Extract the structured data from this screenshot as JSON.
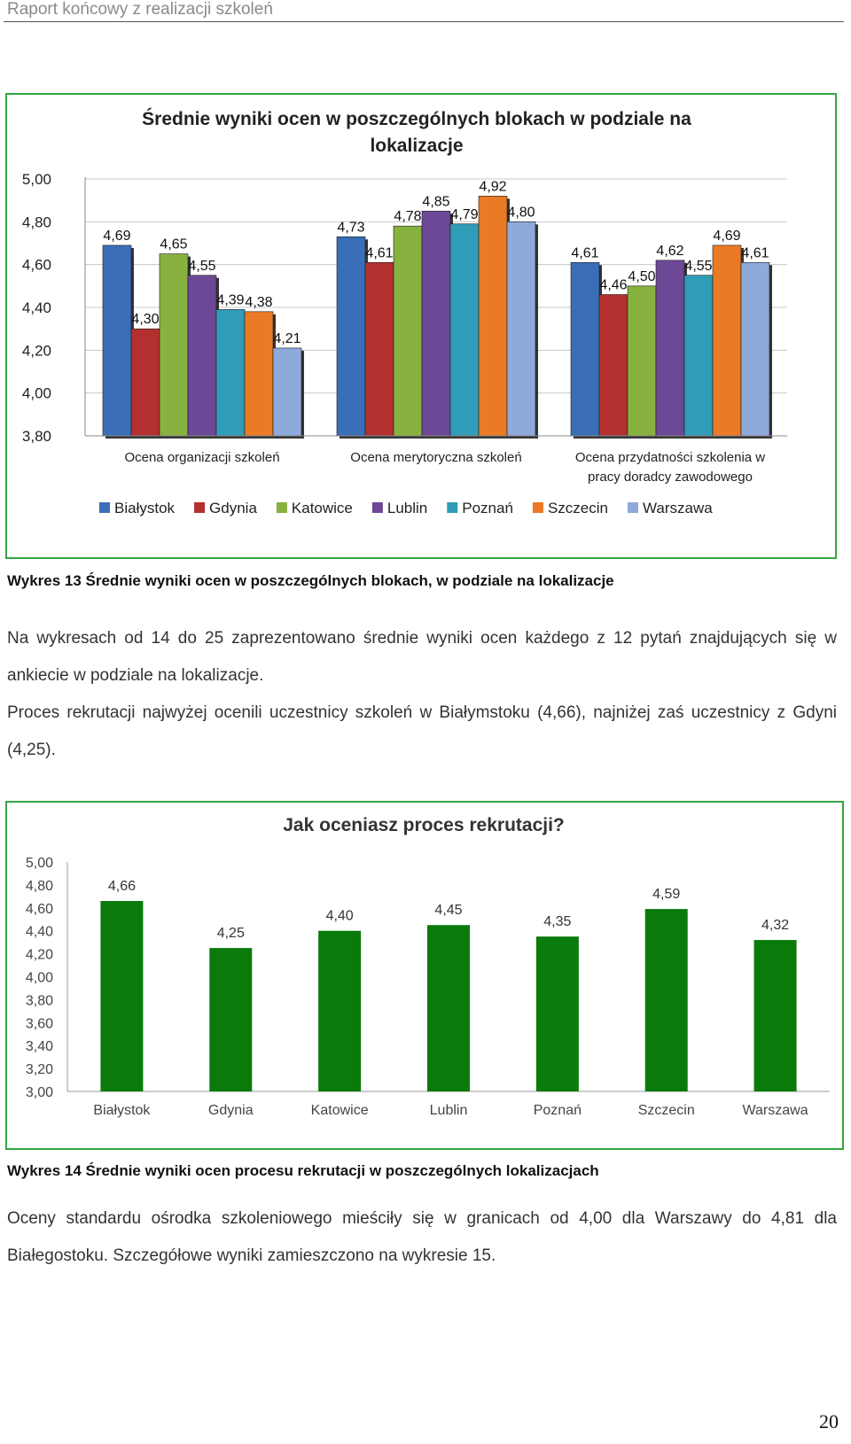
{
  "header": {
    "title": "Raport końcowy z realizacji szkoleń"
  },
  "chart1": {
    "chart_data": {
      "type": "bar",
      "title": "Średnie wyniki ocen w poszczególnych blokach w podziale na lokalizacje",
      "title_lines": [
        "Średnie wyniki ocen w poszczególnych blokach w podziale na",
        "lokalizacje"
      ],
      "categories": [
        "Ocena organizacji szkoleń",
        "Ocena merytoryczna szkoleń",
        "Ocena przydatności szkolenia w pracy doradcy zawodowego"
      ],
      "category_lines": [
        [
          "Ocena organizacji szkoleń"
        ],
        [
          "Ocena merytoryczna szkoleń"
        ],
        [
          "Ocena przydatności szkolenia w",
          "pracy doradcy zawodowego"
        ]
      ],
      "series": [
        {
          "name": "Białystok",
          "color": "#3a6fb7",
          "values": [
            4.69,
            4.73,
            4.61
          ]
        },
        {
          "name": "Gdynia",
          "color": "#b3302f",
          "values": [
            4.3,
            4.61,
            4.46
          ]
        },
        {
          "name": "Katowice",
          "color": "#88b140",
          "values": [
            4.65,
            4.78,
            4.5
          ]
        },
        {
          "name": "Lublin",
          "color": "#6c4896",
          "values": [
            4.55,
            4.85,
            4.62
          ]
        },
        {
          "name": "Poznań",
          "color": "#2f9db8",
          "values": [
            4.39,
            4.79,
            4.55
          ]
        },
        {
          "name": "Szczecin",
          "color": "#ea7a25",
          "values": [
            4.38,
            4.92,
            4.69
          ]
        },
        {
          "name": "Warszawa",
          "color": "#8eaadb",
          "values": [
            4.21,
            4.8,
            4.61
          ]
        }
      ],
      "ylim": [
        3.8,
        5.0
      ],
      "yticks": [
        "5,00",
        "4,80",
        "4,60",
        "4,40",
        "4,20",
        "4,00",
        "3,80"
      ],
      "grid": true,
      "legend_position": "bottom"
    }
  },
  "caption1": "Wykres 13 Średnie wyniki ocen w poszczególnych blokach, w podziale na lokalizacje",
  "paragraph1a": "Na wykresach od 14 do 25 zaprezentowano średnie wyniki ocen każdego z 12 pytań znajdujących się w ankiecie w podziale na lokalizacje.",
  "paragraph1b": "Proces rekrutacji najwyżej ocenili uczestnicy szkoleń w Białymstoku (4,66), najniżej zaś uczestnicy z Gdyni (4,25).",
  "chart2": {
    "chart_data": {
      "type": "bar",
      "title": "Jak oceniasz proces rekrutacji?",
      "categories": [
        "Białystok",
        "Gdynia",
        "Katowice",
        "Lublin",
        "Poznań",
        "Szczecin",
        "Warszawa"
      ],
      "values": [
        4.66,
        4.25,
        4.4,
        4.45,
        4.35,
        4.59,
        4.32
      ],
      "labels": [
        "4,66",
        "4,25",
        "4,40",
        "4,45",
        "4,35",
        "4,59",
        "4,32"
      ],
      "color": "#0a7a0a",
      "ylim": [
        3.0,
        5.0
      ],
      "yticks": [
        "5,00",
        "4,80",
        "4,60",
        "4,40",
        "4,20",
        "4,00",
        "3,80",
        "3,60",
        "3,40",
        "3,20",
        "3,00"
      ],
      "grid": false
    }
  },
  "caption2": "Wykres 14 Średnie wyniki ocen procesu rekrutacji w poszczególnych lokalizacjach",
  "paragraph2": "Oceny standardu ośrodka szkoleniowego mieściły się w granicach od 4,00 dla Warszawy do 4,81 dla Białegostoku. Szczegółowe wyniki zamieszczono na wykresie 15.",
  "page_number": "20"
}
